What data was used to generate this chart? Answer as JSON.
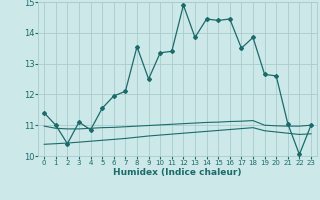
{
  "xlabel": "Humidex (Indice chaleur)",
  "bg_color": "#cce8e8",
  "grid_color": "#aacccc",
  "line_color": "#1a6b6b",
  "xlim": [
    -0.5,
    23.5
  ],
  "ylim": [
    10,
    15
  ],
  "yticks": [
    10,
    11,
    12,
    13,
    14,
    15
  ],
  "xticks": [
    0,
    1,
    2,
    3,
    4,
    5,
    6,
    7,
    8,
    9,
    10,
    11,
    12,
    13,
    14,
    15,
    16,
    17,
    18,
    19,
    20,
    21,
    22,
    23
  ],
  "curve1_x": [
    0,
    1,
    2,
    3,
    4,
    5,
    6,
    7,
    8,
    9,
    10,
    11,
    12,
    13,
    14,
    15,
    16,
    17,
    18,
    19,
    20,
    21,
    22,
    23
  ],
  "curve1_y": [
    11.4,
    11.0,
    10.4,
    11.1,
    10.85,
    11.55,
    11.95,
    12.1,
    13.55,
    12.5,
    13.35,
    13.4,
    14.9,
    13.85,
    14.45,
    14.4,
    14.45,
    13.5,
    13.85,
    12.65,
    12.6,
    11.05,
    10.05,
    11.0
  ],
  "curve2_x": [
    0,
    1,
    2,
    3,
    4,
    5,
    6,
    7,
    8,
    9,
    10,
    11,
    12,
    13,
    14,
    15,
    16,
    17,
    18,
    19,
    20,
    21,
    22,
    23
  ],
  "curve2_y": [
    10.97,
    10.9,
    10.88,
    10.88,
    10.9,
    10.92,
    10.93,
    10.95,
    10.97,
    10.99,
    11.01,
    11.03,
    11.05,
    11.07,
    11.09,
    11.1,
    11.12,
    11.13,
    11.15,
    11.0,
    10.98,
    10.97,
    10.97,
    11.0
  ],
  "curve3_x": [
    0,
    1,
    2,
    3,
    4,
    5,
    6,
    7,
    8,
    9,
    10,
    11,
    12,
    13,
    14,
    15,
    16,
    17,
    18,
    19,
    20,
    21,
    22,
    23
  ],
  "curve3_y": [
    10.38,
    10.4,
    10.42,
    10.45,
    10.48,
    10.51,
    10.54,
    10.57,
    10.61,
    10.65,
    10.68,
    10.71,
    10.74,
    10.77,
    10.8,
    10.83,
    10.86,
    10.89,
    10.92,
    10.82,
    10.78,
    10.74,
    10.7,
    10.72
  ]
}
